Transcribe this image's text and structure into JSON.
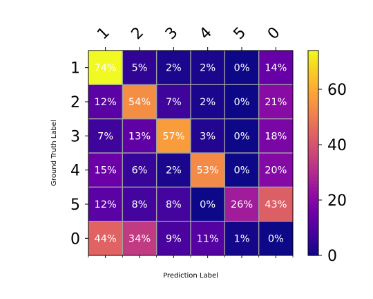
{
  "chart_data": {
    "type": "heatmap",
    "title": "",
    "xlabel": "Prediction Label",
    "ylabel": "Ground Truth Label",
    "x_categories": [
      "1",
      "2",
      "3",
      "4",
      "5",
      "0"
    ],
    "y_categories": [
      "1",
      "2",
      "3",
      "4",
      "5",
      "0"
    ],
    "values": [
      [
        74,
        5,
        2,
        2,
        0,
        14
      ],
      [
        12,
        54,
        7,
        2,
        0,
        21
      ],
      [
        7,
        13,
        57,
        3,
        0,
        18
      ],
      [
        15,
        6,
        2,
        53,
        0,
        20
      ],
      [
        12,
        8,
        8,
        0,
        26,
        43
      ],
      [
        44,
        34,
        9,
        11,
        1,
        0
      ]
    ],
    "value_suffix": "%",
    "colormap": "plasma",
    "colorbar": {
      "range": [
        0,
        74
      ],
      "ticks": [
        0,
        20,
        40,
        60
      ]
    },
    "grid": true,
    "grid_color": "#a0a0a0",
    "x_tick_position": "top"
  }
}
